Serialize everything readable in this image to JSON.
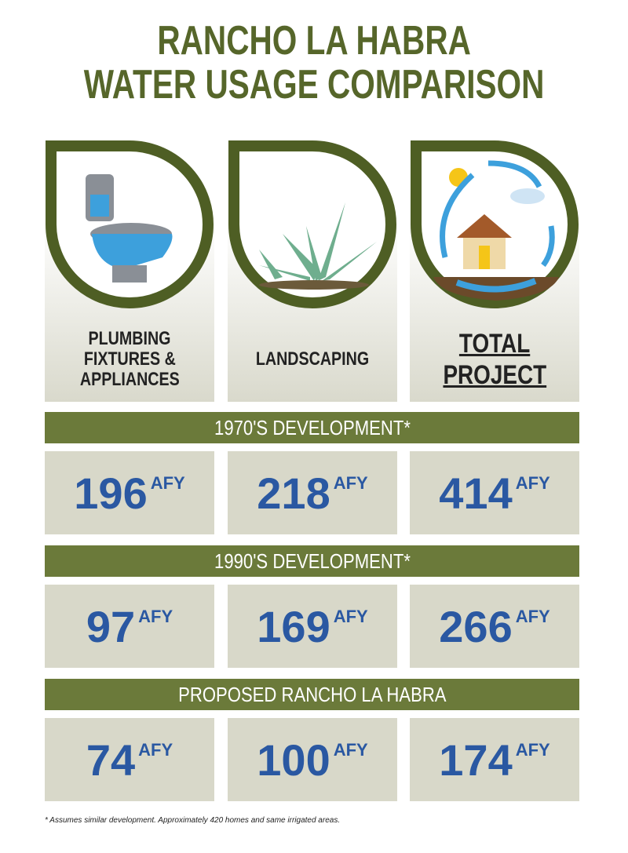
{
  "header": {
    "title_lines": [
      "RANCHO LA HABRA",
      "WATER USAGE COMPARISON"
    ]
  },
  "columns": [
    {
      "label_lines": [
        "PLUMBING",
        "FIXTURES &",
        "APPLIANCES"
      ]
    },
    {
      "label_lines": [
        "LANDSCAPING"
      ]
    },
    {
      "label_lines": [
        "TOTAL",
        "PROJECT"
      ]
    }
  ],
  "sections": [
    {
      "title": "1970'S DEVELOPMENT*",
      "cells": [
        {
          "value": 196,
          "unit": "AFY"
        },
        {
          "value": 218,
          "unit": "AFY"
        },
        {
          "value": 414,
          "unit": "AFY"
        }
      ]
    },
    {
      "title": "1990'S DEVELOPMENT*",
      "cells": [
        {
          "value": 97,
          "unit": "AFY"
        },
        {
          "value": 169,
          "unit": "AFY"
        },
        {
          "value": 266,
          "unit": "AFY"
        }
      ]
    },
    {
      "title": "PROPOSED RANCHO LA HABRA",
      "cells": [
        {
          "value": 74,
          "unit": "AFY"
        },
        {
          "value": 100,
          "unit": "AFY"
        },
        {
          "value": 174,
          "unit": "AFY"
        }
      ]
    }
  ],
  "footnote": "* Assumes similar development. Approximately 420 homes and same irrigated areas."
}
